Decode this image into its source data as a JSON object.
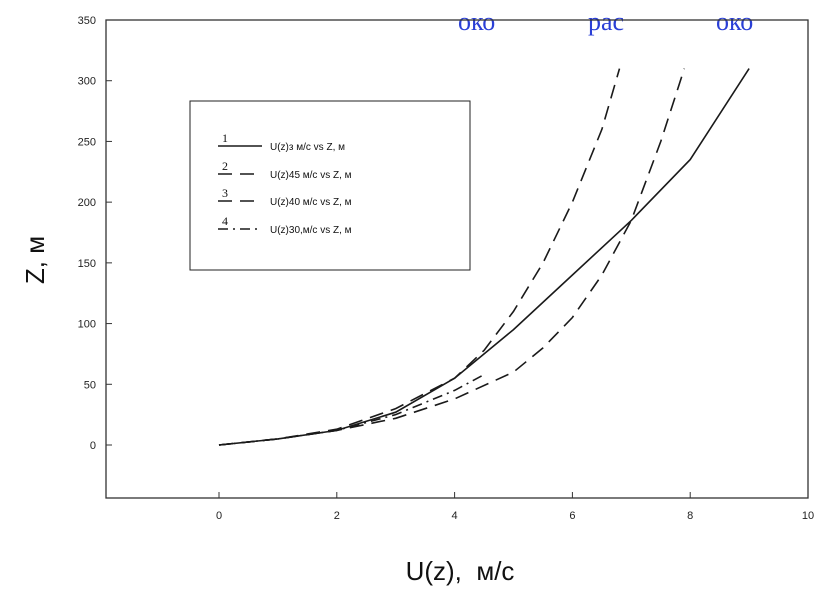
{
  "header_fragment": [
    "око",
    "рас",
    "око"
  ],
  "chart_data": {
    "type": "line",
    "xlabel": "U(z),  м/с",
    "ylabel": "Z, м",
    "xlim": [
      -2,
      10
    ],
    "ylim": [
      -50,
      350
    ],
    "x_ticks": [
      0,
      2,
      4,
      6,
      8,
      10
    ],
    "y_ticks": [
      0,
      50,
      100,
      150,
      200,
      250,
      300,
      350
    ],
    "grid": false,
    "legend_position": "upper-left",
    "legend": [
      {
        "number": "1",
        "label": "U(z)з м/с vs Z, м"
      },
      {
        "number": "2",
        "label": "U(z)45  м/с vs Z, м"
      },
      {
        "number": "3",
        "label": "U(z)40  м/с vs Z, м"
      },
      {
        "number": "4",
        "label": "U(z)30,м/с vs Z, м"
      }
    ],
    "series": [
      {
        "style": "solid",
        "x": [
          0,
          1,
          2,
          3,
          4,
          5,
          6,
          7,
          8,
          9
        ],
        "y": [
          0,
          5,
          12,
          27,
          55,
          95,
          140,
          185,
          235,
          310
        ]
      },
      {
        "style": "dashed",
        "x": [
          0,
          1,
          2,
          3,
          4,
          4.5,
          5,
          5.5,
          6,
          6.5,
          6.8
        ],
        "y": [
          0,
          5,
          13,
          30,
          55,
          78,
          110,
          150,
          200,
          260,
          310
        ]
      },
      {
        "style": "dashed",
        "x": [
          0,
          1,
          2,
          3,
          4,
          5,
          5.5,
          6,
          6.5,
          7,
          7.5,
          7.9
        ],
        "y": [
          0,
          5,
          12,
          22,
          38,
          60,
          80,
          105,
          140,
          185,
          250,
          310
        ]
      },
      {
        "style": "dash-dot",
        "x": [
          0,
          1,
          2,
          3,
          3.5,
          4,
          4.5
        ],
        "y": [
          0,
          5,
          12,
          25,
          35,
          45,
          58
        ]
      }
    ]
  }
}
